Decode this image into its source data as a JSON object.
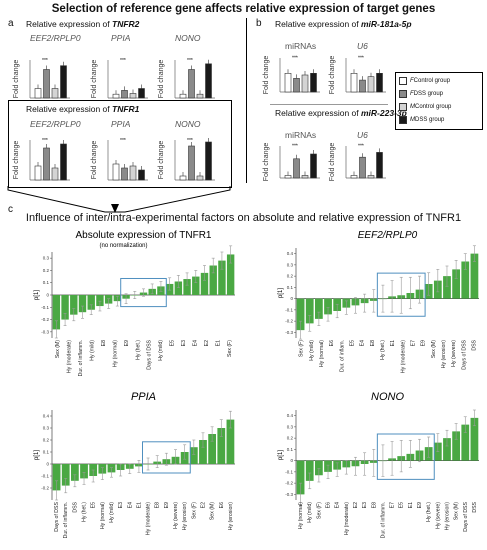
{
  "header": "Selection of reference gene affects relative expression of target genes",
  "panel_a": {
    "letter": "a",
    "tnfr2_title": "Relative expression of ",
    "tnfr2_gene": "TNFR2",
    "tnfr1_title": "Relative expression of ",
    "tnfr1_gene": "TNFR1",
    "refs": [
      "EEF2/RPLP0",
      "PPIA",
      "NONO"
    ],
    "ylabel": "Fold change"
  },
  "panel_b": {
    "letter": "b",
    "mir181_title": "Relative expression of ",
    "mir181_gene": "miR-181a-5p",
    "mir223_title": "Relative expression of ",
    "mir223_gene": "miR-223-3p",
    "refs": [
      "miRNAs",
      "U6"
    ],
    "ylabel": "Fold change"
  },
  "legend": {
    "items": [
      {
        "prefix": "F",
        "label": " Control group",
        "color": "#ffffff"
      },
      {
        "prefix": "F",
        "label": " DSS  group",
        "color": "#8a8a8a"
      },
      {
        "prefix": "M",
        "label": " Control group",
        "color": "#d4d4d4"
      },
      {
        "prefix": "M",
        "label": " DSS  group",
        "color": "#1a1a1a"
      }
    ]
  },
  "panel_c": {
    "letter": "c",
    "title": "Influence of inter/intra-experimental factors on absolute and relative expression of TNFR1"
  },
  "colors": {
    "bar": "#4aa843",
    "box": "#4f8fbf",
    "err": "#999999"
  },
  "chart_data": [
    {
      "type": "bar",
      "title": "Absolute expression of TNFR1",
      "subtitle": "(no normalization)",
      "ylabel": "p[1]",
      "ylim": [
        -0.35,
        0.35
      ],
      "yticks": [
        -0.3,
        -0.2,
        -0.1,
        0,
        0.1,
        0.2,
        0.3
      ],
      "categories": [
        "Sex (M)",
        "Hy (moderate)",
        "Hy (severe)",
        "Dur. of inflamm.",
        "E8",
        "Hy (mild)",
        "Days of DSS",
        "Hy (het.)",
        "E7",
        "E9",
        "Hy (normal)",
        "E6",
        "Hy (erosion)",
        "E5",
        "E4",
        "E2",
        "E3",
        "E1",
        "Sex (F)",
        "DSS",
        "Hy (het.)"
      ],
      "values": [
        -0.28,
        -0.2,
        -0.16,
        -0.14,
        -0.12,
        -0.09,
        -0.07,
        -0.05,
        -0.03,
        0.0,
        0.02,
        0.05,
        0.07,
        0.09,
        0.11,
        0.13,
        0.15,
        0.18,
        0.24,
        0.28,
        0.33
      ],
      "errors": [
        0.07,
        0.05,
        0.05,
        0.05,
        0.04,
        0.04,
        0.04,
        0.04,
        0.04,
        0.03,
        0.03,
        0.04,
        0.04,
        0.05,
        0.05,
        0.05,
        0.05,
        0.06,
        0.06,
        0.07,
        0.07
      ],
      "xlabels_shown": [
        "Sex (M)",
        "Hy (moderate)",
        "Dur. of inflamm.",
        "Hy (mild)",
        "E8",
        "Hy (normal)",
        "E9",
        "Hy (het.)",
        "Days of DSS",
        "Hy (mild)",
        "E5",
        "E3",
        "E4",
        "E2",
        "E1",
        "Sex (F)"
      ],
      "highlight_range": [
        8,
        12
      ]
    },
    {
      "type": "bar",
      "title": "EEF2/RPLP0",
      "ylabel": "p[1]",
      "ylim": [
        -0.35,
        0.45
      ],
      "yticks": [
        -0.3,
        -0.2,
        -0.1,
        0,
        0.1,
        0.2,
        0.3,
        0.4
      ],
      "categories": [
        "Sex (F)",
        "Hy (mild)",
        "Hy (normal)",
        "E6",
        "Dur. of inflam.",
        "E5",
        "E4",
        "E8",
        "Hy (het.)",
        "E2",
        "Hy (moderate)",
        "E1",
        "E7",
        "E9",
        "Sex (M)",
        "Hy (erosion)",
        "Hy (severe)",
        "Days of DSS",
        "DSS",
        "E3"
      ],
      "values": [
        -0.28,
        -0.22,
        -0.18,
        -0.14,
        -0.11,
        -0.08,
        -0.06,
        -0.04,
        -0.02,
        0.0,
        0.02,
        0.03,
        0.05,
        0.08,
        0.13,
        0.16,
        0.2,
        0.26,
        0.33,
        0.4
      ],
      "errors": [
        0.08,
        0.07,
        0.06,
        0.06,
        0.06,
        0.06,
        0.07,
        0.08,
        0.1,
        0.12,
        0.14,
        0.16,
        0.14,
        0.12,
        0.1,
        0.1,
        0.09,
        0.08,
        0.07,
        0.07
      ],
      "xlabels_shown": [
        "Sex (F)",
        "Hy (mild)",
        "Hy (normal)",
        "E6",
        "Dur. of inflam.",
        "E5",
        "E4",
        "E8",
        "Hy (het.)",
        "E1",
        "Hy (moderate)",
        "E7",
        "E9",
        "Sex (M)",
        "Hy (erosion)",
        "Hy (severe)",
        "Days of DSS",
        "DSS"
      ],
      "highlight_range": [
        9,
        13
      ]
    },
    {
      "type": "bar",
      "title": "PPIA",
      "ylabel": "p[1]",
      "ylim": [
        -0.3,
        0.45
      ],
      "yticks": [
        -0.2,
        -0.1,
        0,
        0.1,
        0.2,
        0.3,
        0.4
      ],
      "categories": [
        "Days of DSS",
        "Dur. of inflamm.",
        "DSS",
        "Hy (het.)",
        "E5",
        "Hy (normal)",
        "Hy (mild)",
        "E3",
        "E4",
        "E1",
        "Hy (moderate)",
        "E8",
        "E9",
        "Hy (severe)",
        "Hy (erosion)",
        "Sex (F)",
        "E2",
        "Sex (M)",
        "E6",
        "Hy (erosion)"
      ],
      "values": [
        -0.22,
        -0.18,
        -0.14,
        -0.12,
        -0.1,
        -0.08,
        -0.07,
        -0.05,
        -0.04,
        -0.02,
        0.0,
        0.02,
        0.04,
        0.06,
        0.1,
        0.14,
        0.2,
        0.25,
        0.3,
        0.37
      ],
      "errors": [
        0.08,
        0.06,
        0.05,
        0.05,
        0.05,
        0.05,
        0.04,
        0.05,
        0.04,
        0.05,
        0.05,
        0.05,
        0.05,
        0.06,
        0.06,
        0.06,
        0.06,
        0.06,
        0.07,
        0.07
      ],
      "xlabels_shown": [
        "Days of DSS",
        "Dur. of inflamm.",
        "DSS",
        "Hy (het.)",
        "E5",
        "Hy (normal)",
        "Hy (mild)",
        "E3",
        "E4",
        "E1",
        "Hy (moderate)",
        "E8",
        "E9",
        "Hy (severe)",
        "Hy (erosion)",
        "Sex (F)",
        "E2",
        "Sex (M)",
        "E6",
        "Hy (erosion)"
      ],
      "highlight_range": [
        10,
        14
      ]
    },
    {
      "type": "bar",
      "title": "NONO",
      "ylabel": "p[1]",
      "ylim": [
        -0.35,
        0.45
      ],
      "yticks": [
        -0.3,
        -0.2,
        -0.1,
        0,
        0.1,
        0.2,
        0.3,
        0.4
      ],
      "categories": [
        "Hy (normal)",
        "Hy (mild)",
        "Sex (F)",
        "E6",
        "E4",
        "Hy (moderate)",
        "E2",
        "E3",
        "E8",
        "Dur. of inflamm.",
        "E7",
        "E5",
        "E1",
        "E9",
        "Hy (het.)",
        "Hy (severe)",
        "Hy (erosion)",
        "Sex (M)",
        "Days of DSS",
        "DSS"
      ],
      "values": [
        -0.3,
        -0.18,
        -0.13,
        -0.1,
        -0.08,
        -0.06,
        -0.05,
        -0.03,
        -0.02,
        0.0,
        0.02,
        0.04,
        0.06,
        0.09,
        0.12,
        0.16,
        0.2,
        0.26,
        0.32,
        0.38
      ],
      "errors": [
        0.1,
        0.07,
        0.06,
        0.06,
        0.06,
        0.06,
        0.08,
        0.1,
        0.12,
        0.14,
        0.15,
        0.14,
        0.12,
        0.1,
        0.09,
        0.08,
        0.07,
        0.07,
        0.07,
        0.07
      ],
      "xlabels_shown": [
        "Hy (normal)",
        "Hy (mild)",
        "Sex (F)",
        "E6",
        "E4",
        "Hy (moderate)",
        "E2",
        "E3",
        "E8",
        "Dur. of inflamm.",
        "E7",
        "E5",
        "E1",
        "E9",
        "Hy (het.)",
        "Hy (severe)",
        "Hy (erosion)",
        "Sex (M)",
        "Days of DSS",
        "DSS"
      ],
      "highlight_range": [
        9,
        14
      ]
    }
  ]
}
